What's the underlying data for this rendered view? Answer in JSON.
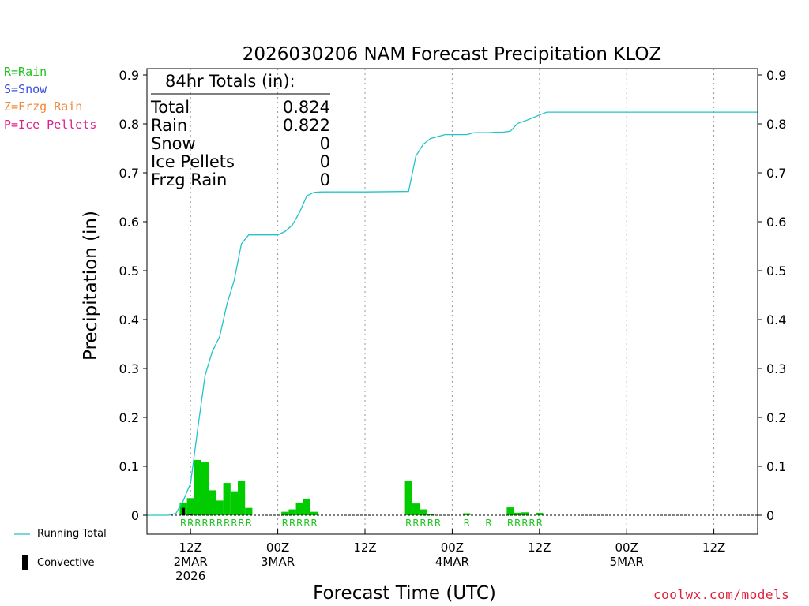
{
  "title": "2026030206 NAM Forecast Precipitation KLOZ",
  "type_legend": [
    {
      "text": "R=Rain",
      "color": "#22c322"
    },
    {
      "text": "S=Snow",
      "color": "#3a4fe0"
    },
    {
      "text": "Z=Frzg Rain",
      "color": "#f08a3c"
    },
    {
      "text": "P=Ice Pellets",
      "color": "#e0208c"
    }
  ],
  "totals": {
    "header": "84hr Totals (in):",
    "rows": [
      {
        "label": "Total",
        "value": "0.824"
      },
      {
        "label": "Rain",
        "value": "0.822"
      },
      {
        "label": "Snow",
        "value": "0"
      },
      {
        "label": "Ice Pellets",
        "value": "0"
      },
      {
        "label": "Frzg Rain",
        "value": "0"
      }
    ]
  },
  "series_legend": {
    "running_total": "Running Total",
    "convective": "Convective"
  },
  "watermark": "coolwx.com/models",
  "colors": {
    "running_total": "#22c3c9",
    "precip_bar": "#00cc00",
    "convective": "#000000",
    "rain_code": "#22c322"
  },
  "chart_data": {
    "type": "bar",
    "title": "2026030206 NAM Forecast Precipitation KLOZ",
    "xlabel": "Forecast Time (UTC)",
    "ylabel": "Precipitation (in)",
    "ylim": [
      0,
      0.9
    ],
    "xlim_hours": [
      0,
      84
    ],
    "y_ticks": [
      "0",
      "0.1",
      "0.2",
      "0.3",
      "0.4",
      "0.5",
      "0.6",
      "0.7",
      "0.8",
      "0.9"
    ],
    "x_ticks": [
      {
        "hour": 6,
        "lines": [
          "12Z",
          "2MAR",
          "2026"
        ]
      },
      {
        "hour": 18,
        "lines": [
          "00Z",
          "3MAR"
        ]
      },
      {
        "hour": 30,
        "lines": [
          "12Z"
        ]
      },
      {
        "hour": 42,
        "lines": [
          "00Z",
          "4MAR"
        ]
      },
      {
        "hour": 54,
        "lines": [
          "12Z"
        ]
      },
      {
        "hour": 66,
        "lines": [
          "00Z",
          "5MAR"
        ]
      },
      {
        "hour": 78,
        "lines": [
          "12Z"
        ]
      }
    ],
    "gridlines": "vertical dotted at 00Z/12Z",
    "bar_width_hours": 1,
    "precip_bars": [
      {
        "hour": 5,
        "value": 0.026
      },
      {
        "hour": 6,
        "value": 0.035
      },
      {
        "hour": 7,
        "value": 0.113
      },
      {
        "hour": 8,
        "value": 0.108
      },
      {
        "hour": 9,
        "value": 0.051
      },
      {
        "hour": 10,
        "value": 0.03
      },
      {
        "hour": 11,
        "value": 0.066
      },
      {
        "hour": 12,
        "value": 0.049
      },
      {
        "hour": 13,
        "value": 0.071
      },
      {
        "hour": 14,
        "value": 0.015
      },
      {
        "hour": 19,
        "value": 0.007
      },
      {
        "hour": 20,
        "value": 0.012
      },
      {
        "hour": 21,
        "value": 0.026
      },
      {
        "hour": 22,
        "value": 0.034
      },
      {
        "hour": 23,
        "value": 0.007
      },
      {
        "hour": 36,
        "value": 0.071
      },
      {
        "hour": 37,
        "value": 0.024
      },
      {
        "hour": 38,
        "value": 0.012
      },
      {
        "hour": 39,
        "value": 0.003
      },
      {
        "hour": 44,
        "value": 0.004
      },
      {
        "hour": 50,
        "value": 0.016
      },
      {
        "hour": 51,
        "value": 0.005
      },
      {
        "hour": 52,
        "value": 0.006
      },
      {
        "hour": 54,
        "value": 0.005
      }
    ],
    "convective_bars": [
      {
        "hour": 5,
        "value": 0.015
      },
      {
        "hour": 6,
        "value": 0.003
      }
    ],
    "running_total": {
      "hours": [
        0,
        3,
        4,
        5,
        6,
        7,
        8,
        9,
        10,
        11,
        12,
        13,
        14,
        15,
        16,
        17,
        18,
        19,
        20,
        21,
        22,
        23,
        24,
        30,
        36,
        37,
        38,
        39,
        40,
        41,
        42,
        43,
        44,
        45,
        46,
        47,
        48,
        49,
        50,
        51,
        52,
        53,
        54,
        55,
        60,
        66,
        72,
        78,
        84
      ],
      "values": [
        0,
        0,
        0.004,
        0.03,
        0.065,
        0.178,
        0.286,
        0.335,
        0.365,
        0.431,
        0.48,
        0.555,
        0.573,
        0.573,
        0.573,
        0.573,
        0.573,
        0.58,
        0.593,
        0.619,
        0.653,
        0.66,
        0.661,
        0.661,
        0.662,
        0.734,
        0.758,
        0.77,
        0.774,
        0.778,
        0.778,
        0.778,
        0.778,
        0.782,
        0.782,
        0.782,
        0.783,
        0.783,
        0.785,
        0.801,
        0.806,
        0.812,
        0.818,
        0.824,
        0.824,
        0.824,
        0.824,
        0.824,
        0.824
      ]
    },
    "type_codes": [
      {
        "hour": 5,
        "code": "R"
      },
      {
        "hour": 6,
        "code": "R"
      },
      {
        "hour": 7,
        "code": "R"
      },
      {
        "hour": 8,
        "code": "R"
      },
      {
        "hour": 9,
        "code": "R"
      },
      {
        "hour": 10,
        "code": "R"
      },
      {
        "hour": 11,
        "code": "R"
      },
      {
        "hour": 12,
        "code": "R"
      },
      {
        "hour": 13,
        "code": "R"
      },
      {
        "hour": 14,
        "code": "R"
      },
      {
        "hour": 19,
        "code": "R"
      },
      {
        "hour": 20,
        "code": "R"
      },
      {
        "hour": 21,
        "code": "R"
      },
      {
        "hour": 22,
        "code": "R"
      },
      {
        "hour": 23,
        "code": "R"
      },
      {
        "hour": 36,
        "code": "R"
      },
      {
        "hour": 37,
        "code": "R"
      },
      {
        "hour": 38,
        "code": "R"
      },
      {
        "hour": 39,
        "code": "R"
      },
      {
        "hour": 40,
        "code": "R"
      },
      {
        "hour": 44,
        "code": "R"
      },
      {
        "hour": 47,
        "code": "R"
      },
      {
        "hour": 50,
        "code": "R"
      },
      {
        "hour": 51,
        "code": "R"
      },
      {
        "hour": 52,
        "code": "R"
      },
      {
        "hour": 53,
        "code": "R"
      },
      {
        "hour": 54,
        "code": "R"
      }
    ]
  }
}
